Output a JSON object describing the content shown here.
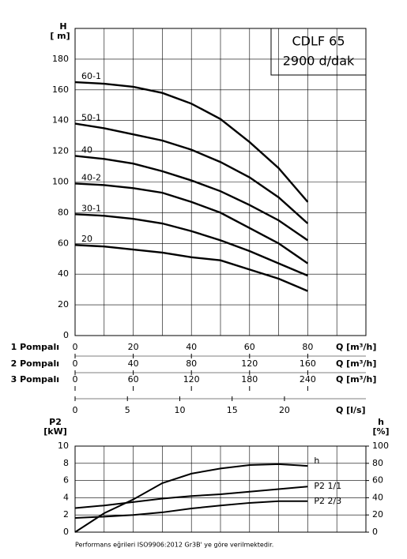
{
  "chart_data": [
    {
      "type": "line",
      "title": "CDLF 65",
      "subtitle": "2900 d/dak",
      "y_label": "H",
      "y_unit": "[ m]",
      "x": [
        0,
        10,
        20,
        30,
        40,
        50,
        60,
        70,
        80
      ],
      "xlim": [
        0,
        100
      ],
      "xticks": [
        0,
        10,
        20,
        30,
        40,
        50,
        60,
        70,
        80,
        90,
        100
      ],
      "ylim": [
        0,
        200
      ],
      "yticks": [
        0,
        20,
        40,
        60,
        80,
        100,
        120,
        140,
        160,
        180
      ],
      "grid": true,
      "series": [
        {
          "name": "60-1",
          "color": "#000000",
          "values": [
            165,
            164,
            162,
            158,
            151,
            141,
            126,
            109,
            87
          ]
        },
        {
          "name": "50-1",
          "color": "#000000",
          "values": [
            138,
            135,
            131,
            127,
            121,
            113,
            103,
            90,
            73
          ]
        },
        {
          "name": "40",
          "color": "#000000",
          "values": [
            117,
            115,
            112,
            107,
            101,
            94,
            85,
            75,
            62
          ]
        },
        {
          "name": "40-2",
          "color": "#000000",
          "values": [
            99,
            98,
            96,
            93,
            87,
            80,
            70,
            60,
            47
          ]
        },
        {
          "name": "30-1",
          "color": "#000000",
          "values": [
            79,
            78,
            76,
            73,
            68,
            62,
            55,
            47,
            39
          ]
        },
        {
          "name": "20",
          "color": "#000000",
          "values": [
            59,
            58,
            56,
            54,
            51,
            49,
            43,
            37,
            29
          ]
        }
      ],
      "q_scales": [
        {
          "label": "1 Pompalı",
          "unit": "Q [m³/h]",
          "xlim": [
            0,
            100
          ],
          "xticks": [
            0,
            20,
            40,
            60,
            80
          ]
        },
        {
          "label": "2 Pompalı",
          "unit": "Q [m³/h]",
          "xlim": [
            0,
            200
          ],
          "xticks": [
            0,
            40,
            80,
            120,
            160
          ]
        },
        {
          "label": "3 Pompalı",
          "unit": "Q [m³/h]",
          "xlim": [
            0,
            300
          ],
          "xticks": [
            0,
            60,
            120,
            180,
            240
          ]
        },
        {
          "unit": "Q [l/s]",
          "xlim": [
            0,
            27.78
          ],
          "xticks": [
            0,
            5,
            10,
            15,
            20
          ]
        }
      ]
    },
    {
      "type": "line",
      "y_label": "P2",
      "y_unit": "[kW]",
      "y2_label": "h",
      "y2_unit": "[%]",
      "x": [
        0,
        10,
        20,
        30,
        40,
        50,
        60,
        70,
        80
      ],
      "xlim": [
        0,
        100
      ],
      "xticks": [
        0,
        10,
        20,
        30,
        40,
        50,
        60,
        70,
        80,
        90,
        100
      ],
      "ylim": [
        0,
        10
      ],
      "yticks": [
        0,
        2,
        4,
        6,
        8,
        10
      ],
      "y2lim": [
        0,
        100
      ],
      "y2ticks": [
        0,
        20,
        40,
        60,
        80,
        100
      ],
      "grid": true,
      "series": [
        {
          "name": "h",
          "color": "#000000",
          "axis": "y2",
          "values": [
            0,
            22,
            38,
            57,
            68,
            74,
            78,
            79,
            77
          ]
        },
        {
          "name": "P2 1/1",
          "color": "#000000",
          "values": [
            2.8,
            3.1,
            3.5,
            3.9,
            4.2,
            4.4,
            4.7,
            5.0,
            5.3
          ]
        },
        {
          "name": "P2 2/3",
          "color": "#000000",
          "values": [
            1.65,
            1.8,
            2.0,
            2.3,
            2.75,
            3.1,
            3.4,
            3.6,
            3.6
          ]
        }
      ]
    }
  ],
  "footnote": "Performans eğrileri ISO9906:2012 Gr3B' ye göre verilmektedir."
}
